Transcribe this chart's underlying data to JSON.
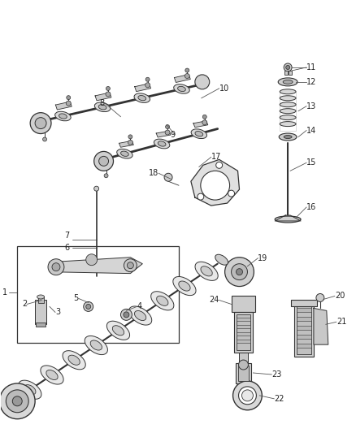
{
  "background_color": "#ffffff",
  "fig_width": 4.38,
  "fig_height": 5.33,
  "dpi": 100,
  "line_color": "#333333",
  "label_color": "#222222",
  "label_fontsize": 7.0
}
